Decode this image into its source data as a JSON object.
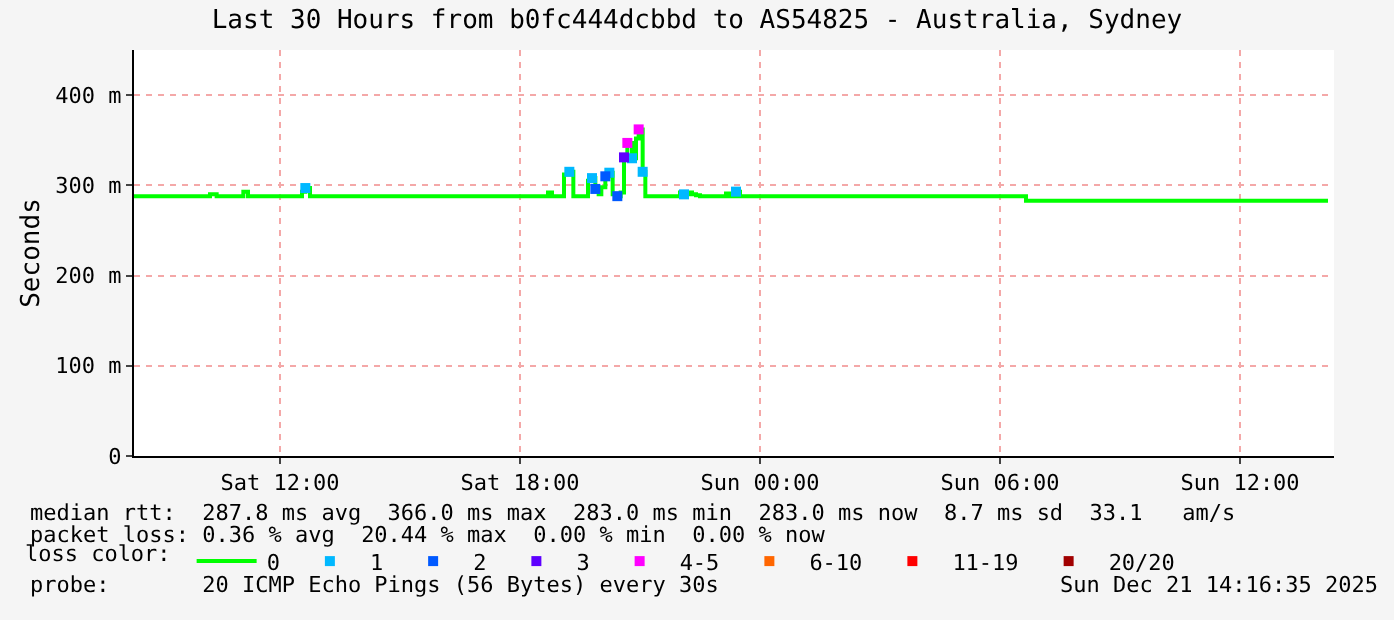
{
  "chart_data": {
    "type": "step",
    "title": "Last 30 Hours from b0fc444dcbbd to AS54825 - Australia, Sydney",
    "ylabel": "Seconds",
    "legend_title": "loss color:",
    "legend": "bottom",
    "grid": true,
    "xlim": [
      "2025-12-20T08:21",
      "2025-12-21T14:21"
    ],
    "xticks": [
      {
        "value": "2025-12-20T12:00",
        "label": "Sat 12:00"
      },
      {
        "value": "2025-12-20T18:00",
        "label": "Sat 18:00"
      },
      {
        "value": "2025-12-21T00:00",
        "label": "Sun 00:00"
      },
      {
        "value": "2025-12-21T06:00",
        "label": "Sun 06:00"
      },
      {
        "value": "2025-12-21T12:00",
        "label": "Sun 12:00"
      }
    ],
    "ylim": [
      0,
      450
    ],
    "yticks": [
      0,
      {
        "value": 100,
        "label": "100 m"
      },
      {
        "value": 200,
        "label": "200 m"
      },
      {
        "value": 300,
        "label": "300 m"
      },
      {
        "value": 400,
        "label": "400 m"
      }
    ],
    "series": [
      {
        "name": "0",
        "color": "#00ff00",
        "marker": "none",
        "line_style": "solid",
        "x": [
          "2025-12-20T08:21",
          "2025-12-20T10:15",
          "2025-12-20T10:25",
          "2025-12-20T11:05",
          "2025-12-20T11:12",
          "2025-12-20T12:33",
          "2025-12-20T12:38",
          "2025-12-20T12:45",
          "2025-12-20T18:42",
          "2025-12-20T18:48",
          "2025-12-20T19:06",
          "2025-12-20T19:14",
          "2025-12-20T19:20",
          "2025-12-20T19:42",
          "2025-12-20T19:48",
          "2025-12-20T19:53",
          "2025-12-20T19:58",
          "2025-12-20T20:02",
          "2025-12-20T20:08",
          "2025-12-20T20:14",
          "2025-12-20T20:19",
          "2025-12-20T20:26",
          "2025-12-20T20:31",
          "2025-12-20T20:36",
          "2025-12-20T20:41",
          "2025-12-20T20:48",
          "2025-12-20T20:54",
          "2025-12-20T20:58",
          "2025-12-20T21:04",
          "2025-12-20T21:08",
          "2025-12-20T22:00",
          "2025-12-20T22:06",
          "2025-12-20T22:12",
          "2025-12-20T22:18",
          "2025-12-20T22:24",
          "2025-12-20T22:30",
          "2025-12-20T23:09",
          "2025-12-20T23:14",
          "2025-12-20T23:24",
          "2025-12-20T23:30",
          "2025-12-21T06:39",
          "2025-12-21T14:12"
        ],
        "values": [
          288,
          290,
          288,
          293,
          288,
          293,
          297,
          288,
          292,
          288,
          312,
          315,
          288,
          305,
          308,
          296,
          290,
          298,
          310,
          314,
          290,
          288,
          292,
          331,
          347,
          330,
          352,
          362,
          315,
          288,
          292,
          290,
          292,
          290,
          289,
          288,
          291,
          288,
          293,
          288,
          283,
          283
        ]
      },
      {
        "name": "1",
        "type": "scatter",
        "color": "#00b8ff",
        "marker": "square",
        "x": [
          "2025-12-20T12:38",
          "2025-12-20T19:14",
          "2025-12-20T19:48",
          "2025-12-20T20:14",
          "2025-12-20T20:48",
          "2025-12-20T21:04",
          "2025-12-20T22:06",
          "2025-12-20T23:24"
        ],
        "values": [
          297,
          315,
          308,
          314,
          330,
          315,
          290,
          293
        ]
      },
      {
        "name": "2",
        "type": "scatter",
        "color": "#0059ff",
        "marker": "square",
        "x": [
          "2025-12-20T19:53",
          "2025-12-20T20:08",
          "2025-12-20T20:26"
        ],
        "values": [
          296,
          310,
          288
        ]
      },
      {
        "name": "3",
        "type": "scatter",
        "color": "#5e00ff",
        "marker": "square",
        "x": [
          "2025-12-20T20:36"
        ],
        "values": [
          331
        ]
      },
      {
        "name": "4-5",
        "type": "scatter",
        "color": "#ff00ff",
        "marker": "square",
        "x": [
          "2025-12-20T20:41",
          "2025-12-20T20:58"
        ],
        "values": [
          347,
          362
        ]
      },
      {
        "name": "6-10",
        "type": "scatter",
        "color": "#ff6600",
        "marker": "square"
      },
      {
        "name": "11-19",
        "type": "scatter",
        "color": "#ff0000",
        "marker": "square"
      },
      {
        "name": "20/20",
        "type": "scatter",
        "color": "#a10000",
        "marker": "square"
      }
    ],
    "annotations": [
      "median rtt:  287.8 ms avg  366.0 ms max  283.0 ms min  283.0 ms now  8.7 ms sd  33.1   am/s",
      "packet loss: 0.36 % avg  20.44 % max  0.00 % min  0.00 % now",
      "probe:       20 ICMP Echo Pings (56 Bytes) every 30s",
      "Sun Dec 21 14:16:35 2025"
    ]
  }
}
